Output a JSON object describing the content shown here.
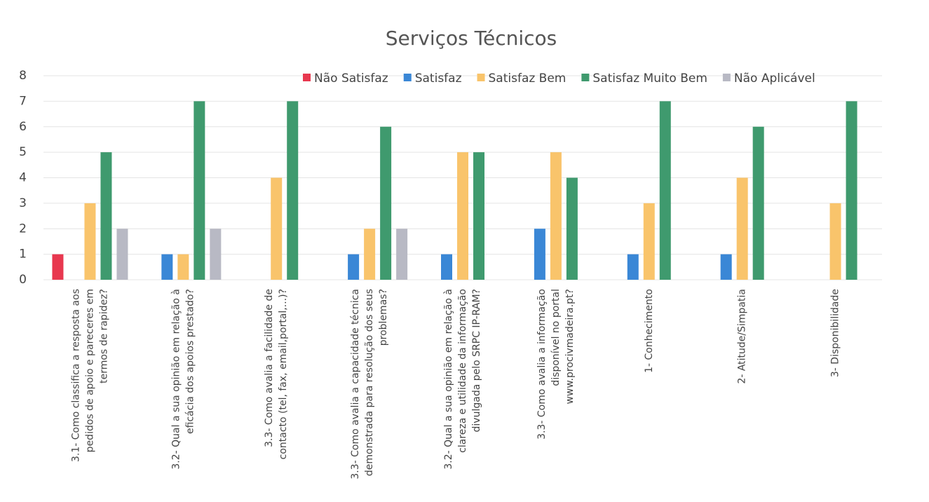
{
  "chart_data": {
    "type": "bar",
    "title": "Serviços Técnicos",
    "categories": [
      [
        "3.1- Como classifica a resposta aos",
        "pedidos de apoio e pareceres em",
        "termos de rapidez?"
      ],
      [
        "3.2- Qual a sua opinião em relação à",
        "eficácia dos apoios prestado?"
      ],
      [
        "3.3- Como avalia a facilidade de",
        "contacto (tel, fax, email,portal,...)?"
      ],
      [
        "3.3- Como avalia a capacidade técnica",
        "demonstrada para resolução dos seus",
        "problemas?"
      ],
      [
        "3.2- Qual a sua opinião em relação à",
        "clareza e utilidade da informação",
        "divulgada pelo SRPC IP-RAM?"
      ],
      [
        "3.3- Como avalia a informação",
        "disponível no portal",
        "www.procivmadeira.pt?"
      ],
      [
        "1- Conhecimento"
      ],
      [
        "2- Atitude/Simpatia"
      ],
      [
        "3- Disponibilidade"
      ]
    ],
    "series": [
      {
        "name": "Não Satisfaz",
        "color": "#e8384f",
        "values": [
          1,
          0,
          0,
          0,
          0,
          0,
          0,
          0,
          0
        ]
      },
      {
        "name": "Satisfaz",
        "color": "#3a87d6",
        "values": [
          0,
          1,
          0,
          1,
          1,
          2,
          1,
          1,
          0
        ]
      },
      {
        "name": "Satisfaz Bem",
        "color": "#f9c46b",
        "values": [
          3,
          1,
          4,
          2,
          5,
          5,
          3,
          4,
          3
        ]
      },
      {
        "name": "Satisfaz Muito Bem",
        "color": "#3f9a6e",
        "values": [
          5,
          7,
          7,
          6,
          5,
          4,
          7,
          6,
          7
        ]
      },
      {
        "name": "Não Aplicável",
        "color": "#b8b9c4",
        "values": [
          2,
          2,
          0,
          2,
          0,
          0,
          0,
          0,
          0
        ]
      }
    ],
    "ylim": [
      0,
      8
    ],
    "yticks": [
      0,
      1,
      2,
      3,
      4,
      5,
      6,
      7,
      8
    ],
    "grid": true,
    "legend": "top-right"
  }
}
